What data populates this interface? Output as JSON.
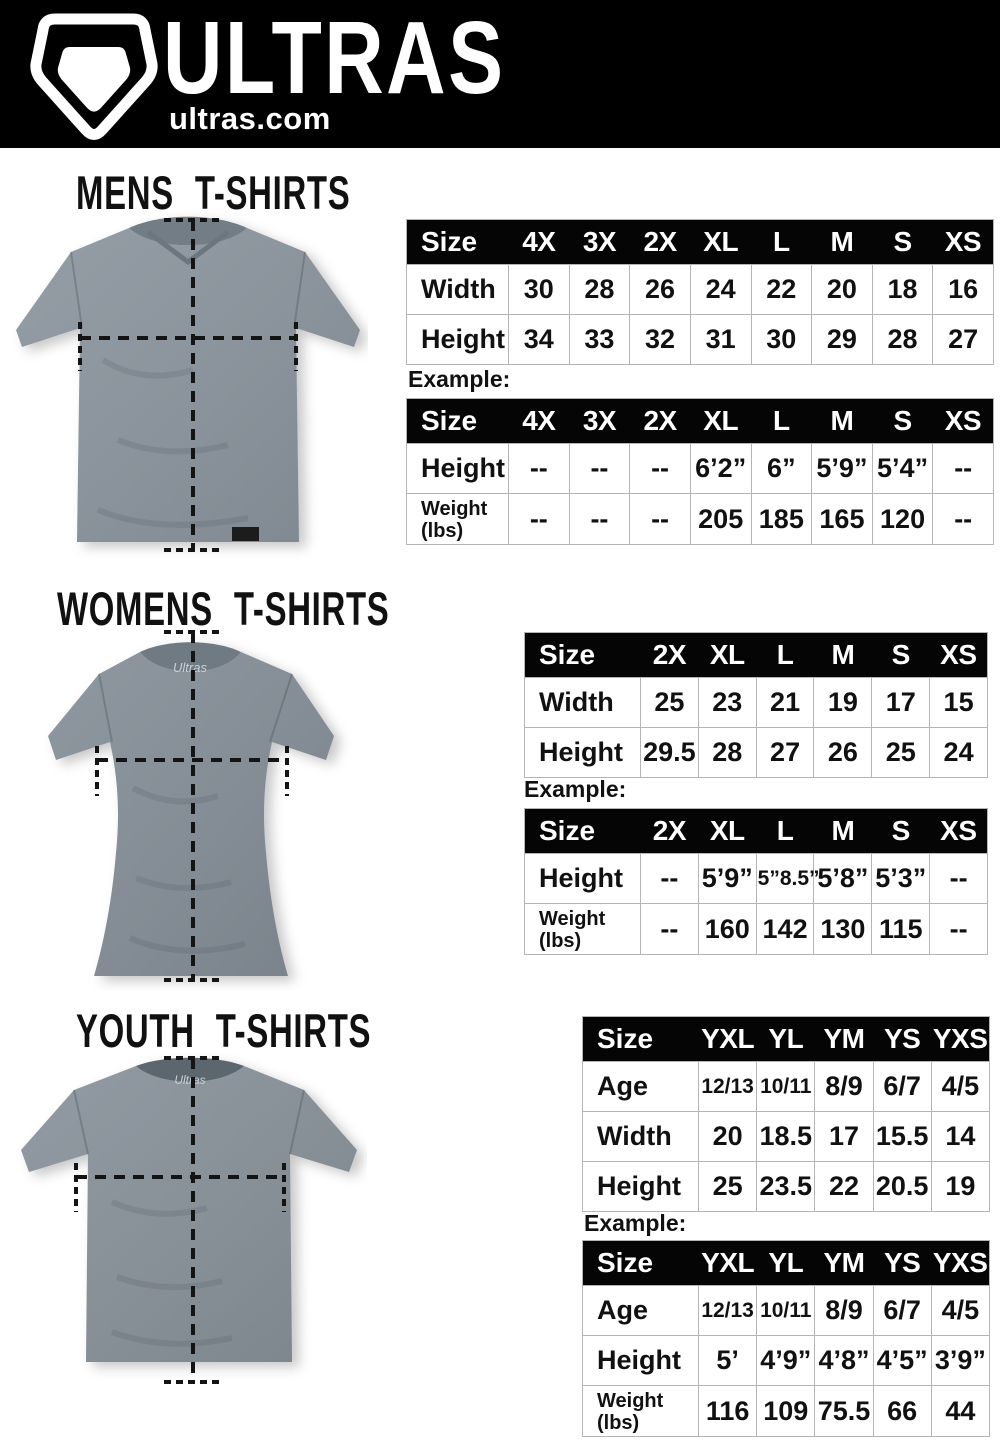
{
  "colors": {
    "header_bg": "#000000",
    "header_fg": "#ffffff",
    "table_header_bg": "#050505",
    "table_border": "#b5b5b5",
    "shirt_gray": "#8a939b",
    "dash_line": "#141414",
    "text": "#111111"
  },
  "header": {
    "brand": "ULTRAS",
    "site": "ultras.com",
    "logo_icon": "pentagon-shield-icon"
  },
  "sections": [
    {
      "title": "MENS T-SHIRTS",
      "example_label": "Example:",
      "shirt_image": "mens-gray-tshirt-photo-with-measurement-lines",
      "size_table": {
        "header": [
          "Size",
          "4X",
          "3X",
          "2X",
          "XL",
          "L",
          "M",
          "S",
          "XS"
        ],
        "rows": [
          {
            "label": "Width",
            "values": [
              "30",
              "28",
              "26",
              "24",
              "22",
              "20",
              "18",
              "16"
            ]
          },
          {
            "label": "Height",
            "values": [
              "34",
              "33",
              "32",
              "31",
              "30",
              "29",
              "28",
              "27"
            ]
          }
        ]
      },
      "example_table": {
        "header": [
          "Size",
          "4X",
          "3X",
          "2X",
          "XL",
          "L",
          "M",
          "S",
          "XS"
        ],
        "rows": [
          {
            "label": "Height",
            "values": [
              "--",
              "--",
              "--",
              "6’2”",
              "6”",
              "5’9”",
              "5’4”",
              "--"
            ]
          },
          {
            "label": "Weight\n(lbs)",
            "values": [
              "--",
              "--",
              "--",
              "205",
              "185",
              "165",
              "120",
              "--"
            ]
          }
        ]
      }
    },
    {
      "title": "WOMENS T-SHIRTS",
      "example_label": "Example:",
      "shirt_image": "womens-gray-tshirt-photo-with-measurement-lines",
      "size_table": {
        "header": [
          "Size",
          "2X",
          "XL",
          "L",
          "M",
          "S",
          "XS"
        ],
        "rows": [
          {
            "label": "Width",
            "values": [
              "25",
              "23",
              "21",
              "19",
              "17",
              "15"
            ]
          },
          {
            "label": "Height",
            "values": [
              "29.5",
              "28",
              "27",
              "26",
              "25",
              "24"
            ]
          }
        ]
      },
      "example_table": {
        "header": [
          "Size",
          "2X",
          "XL",
          "L",
          "M",
          "S",
          "XS"
        ],
        "rows": [
          {
            "label": "Height",
            "values": [
              "--",
              "5’9”",
              "5”8.5”",
              "5’8”",
              "5’3”",
              "--"
            ]
          },
          {
            "label": "Weight\n(lbs)",
            "values": [
              "--",
              "160",
              "142",
              "130",
              "115",
              "--"
            ]
          }
        ]
      }
    },
    {
      "title": "YOUTH T-SHIRTS",
      "example_label": "Example:",
      "shirt_image": "youth-gray-tshirt-photo-with-measurement-lines",
      "size_table": {
        "header": [
          "Size",
          "YXL",
          "YL",
          "YM",
          "YS",
          "YXS"
        ],
        "rows": [
          {
            "label": "Age",
            "values": [
              "12/13",
              "10/11",
              "8/9",
              "6/7",
              "4/5"
            ]
          },
          {
            "label": "Width",
            "values": [
              "20",
              "18.5",
              "17",
              "15.5",
              "14"
            ]
          },
          {
            "label": "Height",
            "values": [
              "25",
              "23.5",
              "22",
              "20.5",
              "19"
            ]
          }
        ]
      },
      "example_table": {
        "header": [
          "Size",
          "YXL",
          "YL",
          "YM",
          "YS",
          "YXS"
        ],
        "rows": [
          {
            "label": "Age",
            "values": [
              "12/13",
              "10/11",
              "8/9",
              "6/7",
              "4/5"
            ]
          },
          {
            "label": "Height",
            "values": [
              "5’",
              "4’9”",
              "4’8”",
              "4’5”",
              "3’9”"
            ]
          },
          {
            "label": "Weight\n(lbs)",
            "values": [
              "116",
              "109",
              "75.5",
              "66",
              "44"
            ]
          }
        ]
      }
    }
  ]
}
